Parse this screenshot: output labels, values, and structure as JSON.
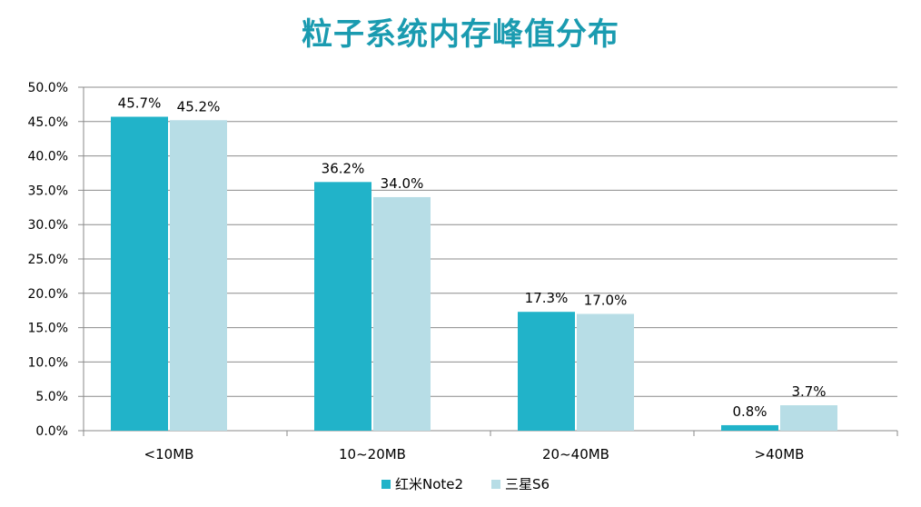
{
  "chart_data": {
    "type": "bar",
    "title": "粒子系统内存峰值分布",
    "categories": [
      "<10MB",
      "10~20MB",
      "20~40MB",
      ">40MB"
    ],
    "series": [
      {
        "name": "红米Note2",
        "values": [
          45.7,
          36.2,
          17.3,
          0.8
        ],
        "labels": [
          "45.7%",
          "36.2%",
          "17.3%",
          "0.8%"
        ],
        "color": "#21b3c9"
      },
      {
        "name": "三星S6",
        "values": [
          45.2,
          34.0,
          17.0,
          3.7
        ],
        "labels": [
          "45.2%",
          "34.0%",
          "17.0%",
          "3.7%"
        ],
        "color": "#b7dde6"
      }
    ],
    "ylim": [
      0,
      50
    ],
    "yticks": [
      0,
      5,
      10,
      15,
      20,
      25,
      30,
      35,
      40,
      45,
      50
    ],
    "ytick_labels": [
      "0.0%",
      "5.0%",
      "10.0%",
      "15.0%",
      "20.0%",
      "25.0%",
      "30.0%",
      "35.0%",
      "40.0%",
      "45.0%",
      "50.0%"
    ],
    "grid": true,
    "legend_position": "bottom"
  }
}
